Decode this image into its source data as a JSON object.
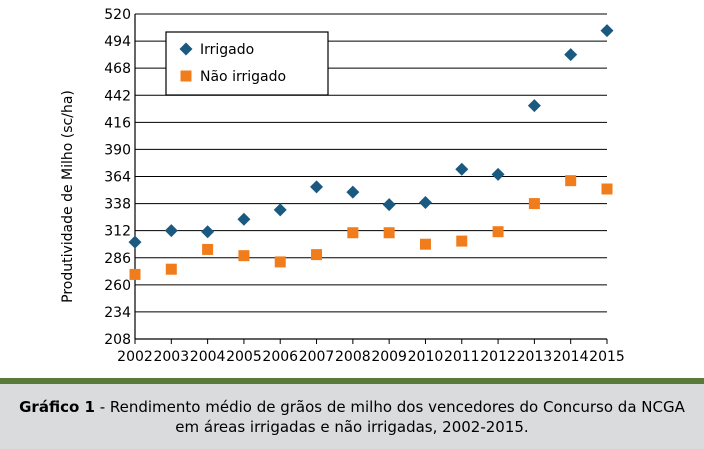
{
  "chart_data": {
    "type": "scatter",
    "title": "",
    "xlabel": "",
    "ylabel": "Produtividade de Milho (sc/ha)",
    "x": [
      2002,
      2003,
      2004,
      2005,
      2006,
      2007,
      2008,
      2009,
      2010,
      2011,
      2012,
      2013,
      2014,
      2015
    ],
    "xlim": [
      2002,
      2015
    ],
    "ylim": [
      208,
      520
    ],
    "yticks": [
      208,
      234,
      260,
      286,
      312,
      338,
      364,
      390,
      416,
      442,
      468,
      494,
      520
    ],
    "grid": "horizontal",
    "legend_position": "top-left",
    "series": [
      {
        "name": "Irrigado",
        "marker": "diamond",
        "color": "#1b5a80",
        "values": [
          301,
          312,
          311,
          323,
          332,
          354,
          349,
          337,
          339,
          371,
          366,
          432,
          481,
          504
        ]
      },
      {
        "name": "Não irrigado",
        "marker": "square",
        "color": "#f07c1c",
        "values": [
          270,
          275,
          294,
          288,
          282,
          289,
          310,
          310,
          299,
          302,
          311,
          338,
          360,
          352
        ]
      }
    ]
  },
  "caption": {
    "bold": "Gráfico 1",
    "line1": " - Rendimento médio de grãos de milho dos vencedores do Concurso da NCGA",
    "line2": "em áreas irrigadas e não irrigadas, 2002-2015."
  }
}
